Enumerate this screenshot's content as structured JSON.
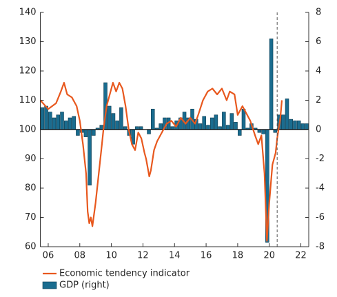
{
  "chart_data": {
    "type": "bar-line",
    "xlim": [
      2006,
      2023
    ],
    "xticks": [
      {
        "value": 2006.5,
        "label": "06"
      },
      {
        "value": 2008.5,
        "label": "08"
      },
      {
        "value": 2010.5,
        "label": "10"
      },
      {
        "value": 2012.5,
        "label": "12"
      },
      {
        "value": 2014.5,
        "label": "14"
      },
      {
        "value": 2016.5,
        "label": "16"
      },
      {
        "value": 2018.5,
        "label": "18"
      },
      {
        "value": 2020.5,
        "label": "20"
      },
      {
        "value": 2022.5,
        "label": "22"
      }
    ],
    "ylim": [
      60,
      140
    ],
    "yticks": [
      60,
      70,
      80,
      90,
      100,
      110,
      120,
      130,
      140
    ],
    "y2lim": [
      -8,
      8
    ],
    "y2ticks": [
      -8,
      -6,
      -4,
      -2,
      0,
      2,
      4,
      6,
      8
    ],
    "vline": 2021,
    "series": [
      {
        "name": "Economic tendency indicator",
        "type": "line",
        "color": "#e8581e",
        "x": [
          2006.0,
          2006.5,
          2007.0,
          2007.3,
          2007.5,
          2007.7,
          2008.0,
          2008.3,
          2008.5,
          2008.7,
          2008.9,
          2009.0,
          2009.1,
          2009.2,
          2009.3,
          2009.5,
          2009.7,
          2009.9,
          2010.0,
          2010.2,
          2010.4,
          2010.6,
          2010.8,
          2011.0,
          2011.2,
          2011.4,
          2011.6,
          2011.8,
          2012.0,
          2012.2,
          2012.4,
          2012.6,
          2012.7,
          2012.9,
          2013.0,
          2013.2,
          2013.4,
          2013.6,
          2013.8,
          2014.0,
          2014.3,
          2014.6,
          2014.9,
          2015.2,
          2015.5,
          2015.8,
          2016.0,
          2016.3,
          2016.6,
          2016.9,
          2017.2,
          2017.5,
          2017.8,
          2018.0,
          2018.3,
          2018.5,
          2018.8,
          2019.0,
          2019.3,
          2019.6,
          2019.8,
          2020.0,
          2020.2,
          2020.35,
          2020.5,
          2020.7,
          2020.9,
          2021.0,
          2021.2,
          2021.3
        ],
        "values": [
          110,
          107,
          109,
          113,
          116,
          112,
          111,
          108,
          103,
          95,
          85,
          72,
          68,
          70,
          67,
          75,
          85,
          95,
          100,
          108,
          112,
          116,
          113,
          116,
          114,
          108,
          100,
          95,
          93,
          99,
          97,
          92,
          90,
          84,
          86,
          93,
          96,
          98,
          100,
          102,
          103,
          101,
          104,
          102,
          104,
          102,
          105,
          110,
          113,
          114,
          112,
          114,
          110,
          113,
          112,
          105,
          108,
          106,
          103,
          98,
          95,
          98,
          85,
          62,
          75,
          88,
          92,
          97,
          104,
          110
        ]
      },
      {
        "name": "GDP (right)",
        "type": "bar",
        "axis": "y2",
        "color": "#1a6c8f",
        "x": [
          2006.125,
          2006.375,
          2006.625,
          2006.875,
          2007.125,
          2007.375,
          2007.625,
          2007.875,
          2008.125,
          2008.375,
          2008.625,
          2008.875,
          2009.125,
          2009.375,
          2009.625,
          2009.875,
          2010.125,
          2010.375,
          2010.625,
          2010.875,
          2011.125,
          2011.375,
          2011.625,
          2011.875,
          2012.125,
          2012.375,
          2012.625,
          2012.875,
          2013.125,
          2013.375,
          2013.625,
          2013.875,
          2014.125,
          2014.375,
          2014.625,
          2014.875,
          2015.125,
          2015.375,
          2015.625,
          2015.875,
          2016.125,
          2016.375,
          2016.625,
          2016.875,
          2017.125,
          2017.375,
          2017.625,
          2017.875,
          2018.125,
          2018.375,
          2018.625,
          2018.875,
          2019.125,
          2019.375,
          2019.625,
          2019.875,
          2020.125,
          2020.375,
          2020.625,
          2020.875,
          2021.125,
          2021.375,
          2021.625,
          2021.875,
          2022.125,
          2022.375,
          2022.625,
          2022.875
        ],
        "values": [
          1.5,
          1.6,
          1.2,
          0.8,
          1.0,
          1.2,
          0.6,
          0.8,
          0.9,
          -0.4,
          -0.2,
          -0.5,
          -3.8,
          -0.4,
          0.1,
          0.3,
          3.2,
          1.6,
          1.1,
          0.6,
          1.5,
          0.2,
          -0.4,
          -1.0,
          0.2,
          0.2,
          0.0,
          -0.3,
          1.4,
          0.1,
          0.4,
          0.8,
          0.8,
          0.2,
          0.6,
          0.8,
          1.2,
          0.8,
          1.4,
          0.7,
          0.4,
          0.9,
          0.3,
          0.8,
          1.0,
          0.2,
          1.2,
          0.3,
          1.1,
          0.5,
          -0.4,
          1.4,
          0.1,
          0.4,
          0.1,
          -0.2,
          -0.3,
          -7.7,
          6.2,
          -0.2,
          1.0,
          1.0,
          2.1,
          0.7,
          0.6,
          0.6,
          0.4,
          0.4
        ]
      }
    ]
  }
}
